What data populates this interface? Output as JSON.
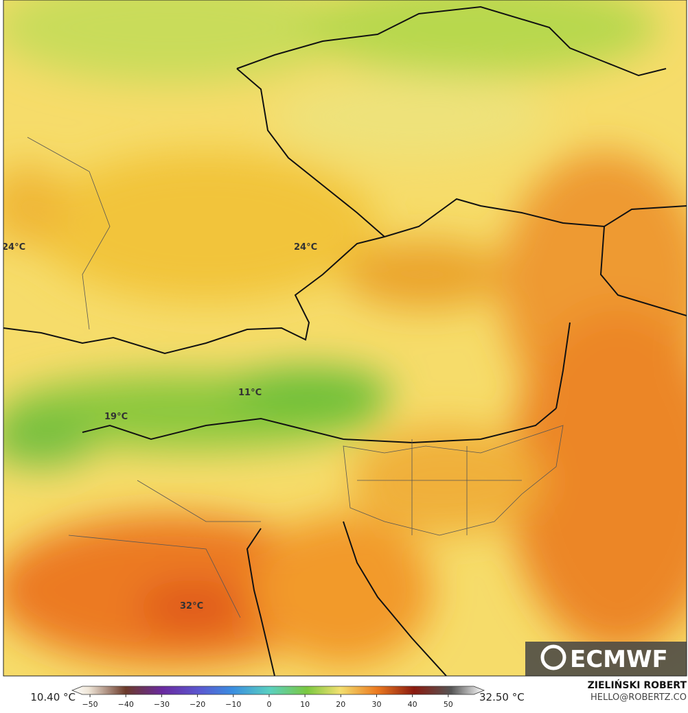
{
  "map": {
    "labels": [
      "24°C",
      "24°C",
      "11°C",
      "19°C",
      "32°C"
    ],
    "logo": "ECMWF"
  },
  "colorbar": {
    "min_label": "10.40 °C",
    "max_label": "32.50 °C",
    "range": [
      -55,
      60
    ],
    "ticks": [
      {
        "value": -50,
        "label": "−50"
      },
      {
        "value": -40,
        "label": "−40"
      },
      {
        "value": -30,
        "label": "−30"
      },
      {
        "value": -20,
        "label": "−20"
      },
      {
        "value": -10,
        "label": "−10"
      },
      0,
      10,
      20,
      30,
      40,
      50
    ]
  },
  "credit": {
    "name": "ZIELIŃSKI ROBERT",
    "email": "HELLO@ROBERTZ.CO"
  }
}
